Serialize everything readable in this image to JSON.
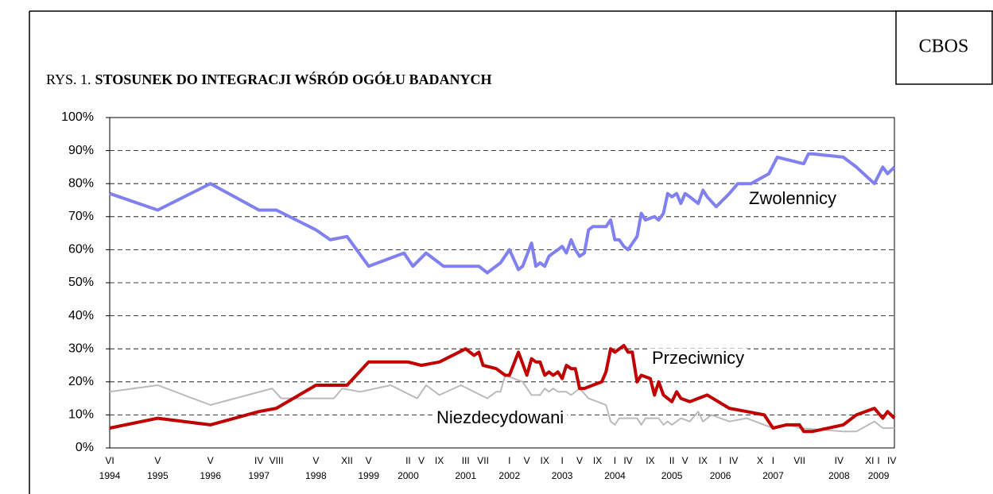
{
  "chart_data": {
    "type": "line",
    "label": "RYS. 1.",
    "title": "STOSUNEK DO INTEGRACJI WŚRÓD OGÓŁU BADANYCH",
    "source": "CBOS",
    "grid": true,
    "ylim": [
      0,
      100
    ],
    "yticks": [
      {
        "value": 0,
        "label": "0%"
      },
      {
        "value": 10,
        "label": "10%"
      },
      {
        "value": 20,
        "label": "20%"
      },
      {
        "value": 30,
        "label": "30%"
      },
      {
        "value": 40,
        "label": "40%"
      },
      {
        "value": 50,
        "label": "50%"
      },
      {
        "value": 60,
        "label": "60%"
      },
      {
        "value": 70,
        "label": "70%"
      },
      {
        "value": 80,
        "label": "80%"
      },
      {
        "value": 90,
        "label": "90%"
      },
      {
        "value": 100,
        "label": "100%"
      }
    ],
    "xlim": [
      1994.42,
      2009.3
    ],
    "xticks": [
      {
        "value": 1994.42,
        "label": "VI"
      },
      {
        "value": 1995.33,
        "label": "V"
      },
      {
        "value": 1996.33,
        "label": "V"
      },
      {
        "value": 1997.25,
        "label": "IV"
      },
      {
        "value": 1997.58,
        "label": "VIII"
      },
      {
        "value": 1998.33,
        "label": "V"
      },
      {
        "value": 1998.92,
        "label": "XII"
      },
      {
        "value": 1999.33,
        "label": "V"
      },
      {
        "value": 2000.08,
        "label": "II"
      },
      {
        "value": 2000.33,
        "label": "V"
      },
      {
        "value": 2000.67,
        "label": "IX"
      },
      {
        "value": 2001.17,
        "label": "III"
      },
      {
        "value": 2001.5,
        "label": "VII"
      },
      {
        "value": 2002.0,
        "label": "I"
      },
      {
        "value": 2002.33,
        "label": "V"
      },
      {
        "value": 2002.67,
        "label": "IX"
      },
      {
        "value": 2003.0,
        "label": "I"
      },
      {
        "value": 2003.33,
        "label": "V"
      },
      {
        "value": 2003.67,
        "label": "IX"
      },
      {
        "value": 2004.0,
        "label": "I"
      },
      {
        "value": 2004.25,
        "label": "IV"
      },
      {
        "value": 2004.67,
        "label": "IX"
      },
      {
        "value": 2005.08,
        "label": "II"
      },
      {
        "value": 2005.33,
        "label": "V"
      },
      {
        "value": 2005.67,
        "label": "IX"
      },
      {
        "value": 2006.0,
        "label": "I"
      },
      {
        "value": 2006.25,
        "label": "IV"
      },
      {
        "value": 2006.75,
        "label": "X"
      },
      {
        "value": 2007.0,
        "label": "I"
      },
      {
        "value": 2007.5,
        "label": "VII"
      },
      {
        "value": 2008.25,
        "label": "IV"
      },
      {
        "value": 2008.83,
        "label": "XI"
      },
      {
        "value": 2009.0,
        "label": "I"
      },
      {
        "value": 2009.25,
        "label": "IV"
      }
    ],
    "year_labels": [
      {
        "value": 1994.42,
        "label": "1994"
      },
      {
        "value": 1995.33,
        "label": "1995"
      },
      {
        "value": 1996.33,
        "label": "1996"
      },
      {
        "value": 1997.25,
        "label": "1997"
      },
      {
        "value": 1998.33,
        "label": "1998"
      },
      {
        "value": 1999.33,
        "label": "1999"
      },
      {
        "value": 2000.08,
        "label": "2000"
      },
      {
        "value": 2001.17,
        "label": "2001"
      },
      {
        "value": 2002.0,
        "label": "2002"
      },
      {
        "value": 2003.0,
        "label": "2003"
      },
      {
        "value": 2004.0,
        "label": "2004"
      },
      {
        "value": 2005.08,
        "label": "2005"
      },
      {
        "value": 2006.0,
        "label": "2006"
      },
      {
        "value": 2007.0,
        "label": "2007"
      },
      {
        "value": 2008.25,
        "label": "2008"
      },
      {
        "value": 2009.0,
        "label": "2009"
      }
    ],
    "series": [
      {
        "name": "Zwolennicy",
        "color": "#8080f0",
        "x": [
          1994.42,
          1995.33,
          1996.33,
          1997.25,
          1997.58,
          1998.33,
          1998.6,
          1998.92,
          1999.33,
          2000.0,
          2000.17,
          2000.42,
          2000.75,
          2001.2,
          2001.42,
          2001.58,
          2001.83,
          2002.0,
          2002.17,
          2002.25,
          2002.42,
          2002.5,
          2002.58,
          2002.67,
          2002.75,
          2002.83,
          2002.92,
          2003.0,
          2003.08,
          2003.17,
          2003.25,
          2003.33,
          2003.42,
          2003.5,
          2003.58,
          2003.83,
          2003.92,
          2004.0,
          2004.08,
          2004.17,
          2004.25,
          2004.42,
          2004.5,
          2004.58,
          2004.75,
          2004.83,
          2004.92,
          2005.0,
          2005.08,
          2005.17,
          2005.25,
          2005.33,
          2005.42,
          2005.58,
          2005.67,
          2005.75,
          2005.92,
          2006.17,
          2006.33,
          2006.58,
          2006.92,
          2007.08,
          2007.33,
          2007.58,
          2007.67,
          2007.75,
          2008.33,
          2008.58,
          2008.92,
          2009.08,
          2009.17,
          2009.3
        ],
        "values": [
          77,
          72,
          80,
          72,
          72,
          66,
          63,
          64,
          55,
          59,
          55,
          59,
          55,
          55,
          55,
          53,
          56,
          60,
          54,
          55,
          62,
          55,
          56,
          55,
          58,
          59,
          60,
          61,
          59,
          63,
          60,
          58,
          59,
          66,
          67,
          67,
          69,
          63,
          63,
          61,
          60,
          64,
          71,
          69,
          70,
          69,
          71,
          77,
          76,
          77,
          74,
          77,
          76,
          74,
          78,
          76,
          73,
          77,
          80,
          80,
          83,
          88,
          87,
          86,
          89,
          89,
          88,
          85,
          80,
          85,
          83,
          85
        ]
      },
      {
        "name": "Przeciwnicy",
        "color": "#c00000",
        "x": [
          1994.42,
          1995.33,
          1996.33,
          1997.25,
          1997.58,
          1998.33,
          1998.92,
          1999.33,
          2000.08,
          2000.33,
          2000.67,
          2001.17,
          2001.33,
          2001.42,
          2001.5,
          2001.75,
          2001.92,
          2002.0,
          2002.17,
          2002.33,
          2002.42,
          2002.5,
          2002.58,
          2002.67,
          2002.75,
          2002.83,
          2002.92,
          2003.0,
          2003.08,
          2003.17,
          2003.25,
          2003.33,
          2003.42,
          2003.58,
          2003.75,
          2003.83,
          2003.92,
          2004.0,
          2004.17,
          2004.25,
          2004.33,
          2004.42,
          2004.5,
          2004.67,
          2004.75,
          2004.83,
          2004.92,
          2005.08,
          2005.17,
          2005.25,
          2005.42,
          2005.58,
          2005.75,
          2006.17,
          2006.5,
          2006.83,
          2007.0,
          2007.25,
          2007.5,
          2007.58,
          2007.75,
          2008.33,
          2008.58,
          2008.92,
          2009.08,
          2009.17,
          2009.3
        ],
        "values": [
          6,
          9,
          7,
          11,
          12,
          19,
          19,
          26,
          26,
          25,
          26,
          30,
          28,
          29,
          25,
          24,
          22,
          22,
          29,
          22,
          27,
          26,
          26,
          22,
          23,
          22,
          23,
          21,
          25,
          24,
          24,
          18,
          18,
          19,
          20,
          23,
          30,
          29,
          31,
          29,
          29,
          20,
          22,
          21,
          16,
          20,
          16,
          14,
          17,
          15,
          14,
          15,
          16,
          12,
          11,
          10,
          6,
          7,
          7,
          5,
          5,
          7,
          10,
          12,
          9,
          11,
          9
        ]
      },
      {
        "name": "Niezdecydowani",
        "color": "#bbbbbb",
        "x": [
          1994.42,
          1995.33,
          1996.33,
          1997.5,
          1997.67,
          1998.67,
          1998.83,
          1999.17,
          1999.75,
          2000.25,
          2000.42,
          2000.67,
          2001.08,
          2001.58,
          2001.75,
          2001.83,
          2001.92,
          2002.08,
          2002.25,
          2002.42,
          2002.58,
          2002.67,
          2002.75,
          2002.83,
          2002.92,
          2003.08,
          2003.17,
          2003.33,
          2003.5,
          2003.83,
          2003.92,
          2004.0,
          2004.08,
          2004.42,
          2004.5,
          2004.58,
          2004.83,
          2004.92,
          2005.0,
          2005.08,
          2005.25,
          2005.42,
          2005.58,
          2005.67,
          2005.83,
          2006.17,
          2006.5,
          2006.83,
          2007.0,
          2007.33,
          2007.5,
          2008.33,
          2008.58,
          2008.92,
          2009.08,
          2009.3
        ],
        "values": [
          17,
          19,
          13,
          18,
          15,
          15,
          18,
          17,
          19,
          15,
          19,
          16,
          19,
          15,
          17,
          17,
          22,
          21,
          20,
          16,
          16,
          18,
          17,
          18,
          17,
          17,
          16,
          18,
          15,
          13,
          8,
          7,
          9,
          9,
          7,
          9,
          9,
          7,
          8,
          7,
          9,
          8,
          11,
          8,
          10,
          8,
          9,
          7,
          6,
          7,
          6,
          5,
          5,
          8,
          6,
          6
        ]
      }
    ]
  }
}
